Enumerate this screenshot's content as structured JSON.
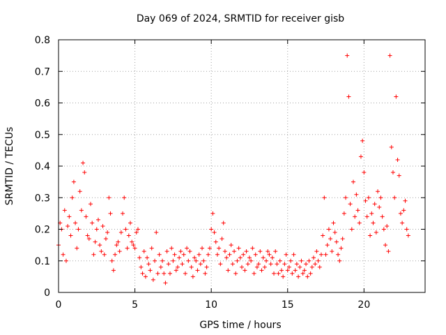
{
  "chart_data": {
    "type": "scatter",
    "title": "Day 069 of 2024, SRMTID for receiver gisb",
    "xlabel": "GPS time / hours",
    "ylabel": "SRMTID / TECUs",
    "xlim": [
      0,
      24
    ],
    "ylim": [
      0,
      0.8
    ],
    "xticks": [
      0,
      5,
      10,
      15,
      20
    ],
    "yticks": [
      0,
      0.1,
      0.2,
      0.3,
      0.4,
      0.5,
      0.6,
      0.7,
      0.8
    ],
    "xtick_labels": [
      "0",
      "5",
      "10",
      "15",
      "20"
    ],
    "ytick_labels": [
      "0",
      "0.1",
      "0.2",
      "0.3",
      "0.4",
      "0.5",
      "0.6",
      "0.7",
      "0.8"
    ],
    "grid": true,
    "marker": "+",
    "color": "#ff0000",
    "series": [
      {
        "name": "gisb",
        "x": [
          0.0,
          0.1,
          0.2,
          0.3,
          0.4,
          0.5,
          0.6,
          0.7,
          0.8,
          0.9,
          1.0,
          1.1,
          1.2,
          1.3,
          1.4,
          1.5,
          1.6,
          1.7,
          1.8,
          1.9,
          2.0,
          2.1,
          2.2,
          2.3,
          2.4,
          2.5,
          2.6,
          2.7,
          2.8,
          2.9,
          3.0,
          3.1,
          3.2,
          3.3,
          3.4,
          3.5,
          3.6,
          3.7,
          3.8,
          3.9,
          4.0,
          4.1,
          4.2,
          4.3,
          4.4,
          4.5,
          4.6,
          4.7,
          4.8,
          4.9,
          5.0,
          5.1,
          5.2,
          5.3,
          5.4,
          5.5,
          5.6,
          5.7,
          5.8,
          5.9,
          6.0,
          6.1,
          6.2,
          6.3,
          6.4,
          6.5,
          6.6,
          6.7,
          6.8,
          6.9,
          7.0,
          7.1,
          7.2,
          7.3,
          7.4,
          7.5,
          7.6,
          7.7,
          7.8,
          7.9,
          8.0,
          8.1,
          8.2,
          8.3,
          8.4,
          8.5,
          8.6,
          8.7,
          8.8,
          8.9,
          9.0,
          9.1,
          9.2,
          9.3,
          9.4,
          9.5,
          9.6,
          9.7,
          9.8,
          9.9,
          10.0,
          10.1,
          10.2,
          10.3,
          10.4,
          10.5,
          10.6,
          10.7,
          10.8,
          10.9,
          11.0,
          11.1,
          11.2,
          11.3,
          11.4,
          11.5,
          11.6,
          11.7,
          11.8,
          11.9,
          12.0,
          12.1,
          12.2,
          12.3,
          12.4,
          12.5,
          12.6,
          12.7,
          12.8,
          12.9,
          13.0,
          13.1,
          13.2,
          13.3,
          13.4,
          13.5,
          13.6,
          13.7,
          13.8,
          13.9,
          14.0,
          14.1,
          14.2,
          14.3,
          14.4,
          14.5,
          14.6,
          14.7,
          14.8,
          14.9,
          15.0,
          15.1,
          15.2,
          15.3,
          15.4,
          15.5,
          15.6,
          15.7,
          15.8,
          15.9,
          16.0,
          16.1,
          16.2,
          16.3,
          16.4,
          16.5,
          16.6,
          16.7,
          16.8,
          16.9,
          17.0,
          17.1,
          17.2,
          17.3,
          17.4,
          17.5,
          17.6,
          17.7,
          17.8,
          17.9,
          18.0,
          18.1,
          18.2,
          18.3,
          18.4,
          18.5,
          18.6,
          18.7,
          18.8,
          18.9,
          19.0,
          19.1,
          19.2,
          19.3,
          19.4,
          19.5,
          19.6,
          19.7,
          19.8,
          19.9,
          20.0,
          20.1,
          20.2,
          20.3,
          20.4,
          20.5,
          20.6,
          20.7,
          20.8,
          20.9,
          21.0,
          21.1,
          21.2,
          21.3,
          21.4,
          21.5,
          21.6,
          21.7,
          21.8,
          21.9,
          22.0,
          22.1,
          22.2,
          22.3,
          22.4,
          22.5,
          22.6,
          22.7,
          22.8,
          22.9
        ],
        "y": [
          0.15,
          0.22,
          0.2,
          0.12,
          0.26,
          0.1,
          0.21,
          0.24,
          0.18,
          0.3,
          0.35,
          0.22,
          0.14,
          0.2,
          0.32,
          0.26,
          0.41,
          0.38,
          0.24,
          0.18,
          0.17,
          0.28,
          0.22,
          0.12,
          0.16,
          0.2,
          0.23,
          0.15,
          0.13,
          0.21,
          0.12,
          0.17,
          0.19,
          0.3,
          0.25,
          0.1,
          0.07,
          0.12,
          0.15,
          0.16,
          0.13,
          0.19,
          0.25,
          0.3,
          0.2,
          0.14,
          0.18,
          0.22,
          0.16,
          0.15,
          0.14,
          0.19,
          0.2,
          0.11,
          0.08,
          0.06,
          0.13,
          0.05,
          0.11,
          0.09,
          0.07,
          0.14,
          0.04,
          0.1,
          0.19,
          0.06,
          0.12,
          0.08,
          0.1,
          0.06,
          0.03,
          0.13,
          0.09,
          0.06,
          0.14,
          0.1,
          0.12,
          0.07,
          0.08,
          0.11,
          0.13,
          0.09,
          0.12,
          0.06,
          0.14,
          0.1,
          0.13,
          0.08,
          0.05,
          0.11,
          0.1,
          0.07,
          0.12,
          0.09,
          0.14,
          0.1,
          0.06,
          0.08,
          0.12,
          0.14,
          0.2,
          0.25,
          0.19,
          0.16,
          0.12,
          0.14,
          0.09,
          0.17,
          0.22,
          0.13,
          0.11,
          0.07,
          0.12,
          0.15,
          0.09,
          0.13,
          0.06,
          0.1,
          0.14,
          0.11,
          0.08,
          0.12,
          0.07,
          0.13,
          0.09,
          0.11,
          0.1,
          0.14,
          0.06,
          0.12,
          0.08,
          0.09,
          0.13,
          0.07,
          0.11,
          0.08,
          0.1,
          0.13,
          0.12,
          0.09,
          0.11,
          0.06,
          0.13,
          0.09,
          0.06,
          0.1,
          0.07,
          0.05,
          0.09,
          0.12,
          0.07,
          0.08,
          0.1,
          0.06,
          0.12,
          0.07,
          0.09,
          0.05,
          0.08,
          0.1,
          0.06,
          0.07,
          0.09,
          0.05,
          0.1,
          0.06,
          0.08,
          0.11,
          0.09,
          0.13,
          0.1,
          0.08,
          0.12,
          0.18,
          0.3,
          0.12,
          0.15,
          0.2,
          0.17,
          0.13,
          0.22,
          0.19,
          0.16,
          0.12,
          0.1,
          0.14,
          0.17,
          0.25,
          0.3,
          0.75,
          0.62,
          0.28,
          0.2,
          0.35,
          0.24,
          0.31,
          0.26,
          0.22,
          0.43,
          0.48,
          0.38,
          0.29,
          0.24,
          0.3,
          0.18,
          0.25,
          0.22,
          0.28,
          0.19,
          0.32,
          0.27,
          0.3,
          0.24,
          0.2,
          0.15,
          0.21,
          0.13,
          0.75,
          0.46,
          0.38,
          0.3,
          0.62,
          0.42,
          0.37,
          0.25,
          0.22,
          0.26,
          0.29,
          0.2,
          0.18
        ]
      }
    ]
  }
}
